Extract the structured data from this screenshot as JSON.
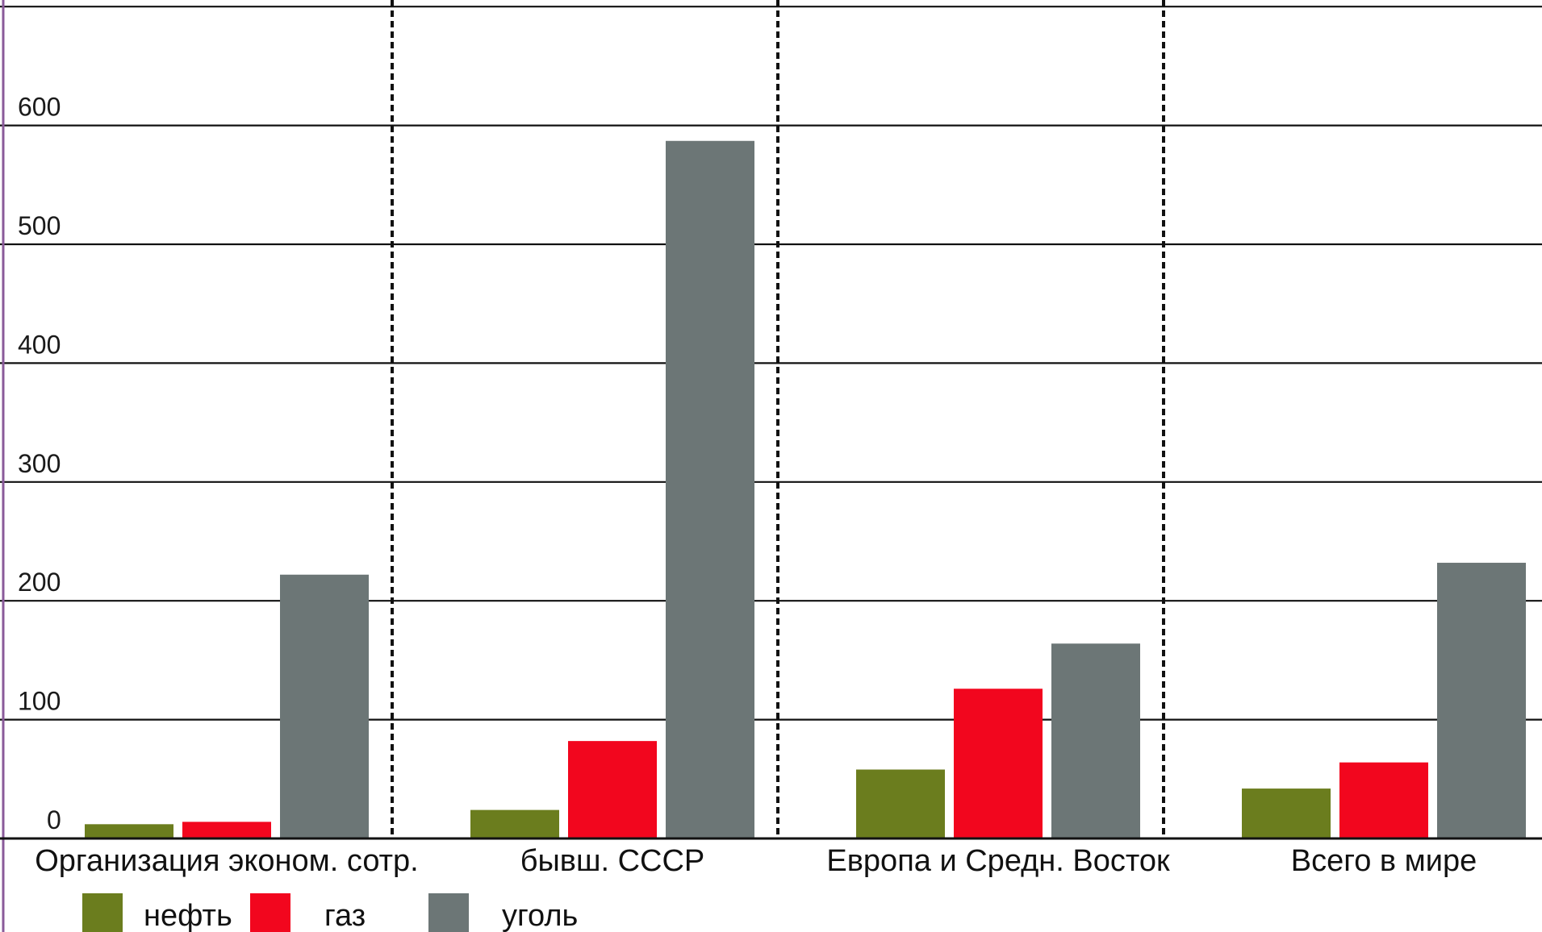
{
  "chart_data": {
    "type": "bar",
    "categories": [
      "Организация эконом. сотр.",
      "бывш. СССР",
      "Европа и Средн. Восток",
      "Всего в мире"
    ],
    "series": [
      {
        "name": "нефть",
        "values": [
          12,
          24,
          58,
          42
        ],
        "color": "#6b7d1e"
      },
      {
        "name": "газ",
        "values": [
          14,
          82,
          126,
          64
        ],
        "color": "#f2061e"
      },
      {
        "name": "уголь",
        "values": [
          222,
          587,
          164,
          232
        ],
        "color": "#6c7676"
      }
    ],
    "ylim": [
      0,
      700
    ],
    "yticks": [
      0,
      100,
      200,
      300,
      400,
      500,
      600
    ],
    "grid": true,
    "legend_position": "bottom-left"
  }
}
